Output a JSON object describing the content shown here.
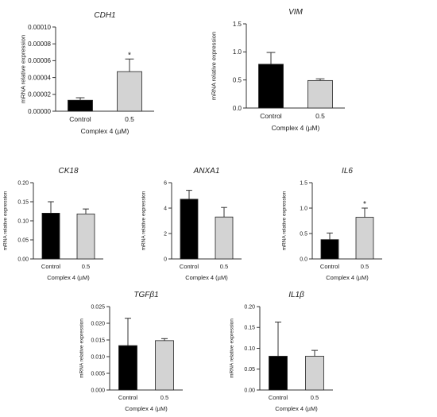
{
  "chart_data": [
    {
      "type": "bar",
      "title": "CDH1",
      "categories": [
        "Control",
        "0.5"
      ],
      "values": [
        1.3e-05,
        4.7e-05
      ],
      "errors": [
        3e-06,
        1.5e-05
      ],
      "significance": [
        "",
        "*"
      ],
      "ylabel": "mRNA relative expression",
      "xlabel": "Complex 4 (µM)",
      "ylim": [
        0,
        0.0001
      ],
      "yticks": [
        "0.00000",
        "0.00002",
        "0.00004",
        "0.00006",
        "0.00008",
        "0.00010"
      ],
      "colors": [
        "#000000",
        "#d3d3d3"
      ]
    },
    {
      "type": "bar",
      "title": "VIM",
      "categories": [
        "Control",
        "0.5"
      ],
      "values": [
        0.78,
        0.49
      ],
      "errors": [
        0.21,
        0.03
      ],
      "significance": [
        "",
        ""
      ],
      "ylabel": "mRNA relative expression",
      "xlabel": "Complex 4 (µM)",
      "ylim": [
        0,
        1.5
      ],
      "yticks": [
        "0.0",
        "0.5",
        "1.0",
        "1.5"
      ],
      "colors": [
        "#000000",
        "#d3d3d3"
      ]
    },
    {
      "type": "bar",
      "title": "CK18",
      "categories": [
        "Control",
        "0.5"
      ],
      "values": [
        0.12,
        0.118
      ],
      "errors": [
        0.03,
        0.013
      ],
      "significance": [
        "",
        ""
      ],
      "ylabel": "mRNA relative expression",
      "xlabel": "Complex 4 (µM)",
      "ylim": [
        0,
        0.2
      ],
      "yticks": [
        "0.00",
        "0.05",
        "0.10",
        "0.15",
        "0.20"
      ],
      "colors": [
        "#000000",
        "#d3d3d3"
      ]
    },
    {
      "type": "bar",
      "title": "ANXA1",
      "categories": [
        "Control",
        "0.5"
      ],
      "values": [
        4.7,
        3.3
      ],
      "errors": [
        0.7,
        0.75
      ],
      "significance": [
        "",
        ""
      ],
      "ylabel": "mRNA relative expression",
      "xlabel": "Complex 4 (µM)",
      "ylim": [
        0,
        6
      ],
      "yticks": [
        "0",
        "2",
        "4",
        "6"
      ],
      "colors": [
        "#000000",
        "#d3d3d3"
      ]
    },
    {
      "type": "bar",
      "title": "IL6",
      "categories": [
        "Control",
        "0.5"
      ],
      "values": [
        0.38,
        0.82
      ],
      "errors": [
        0.13,
        0.18
      ],
      "significance": [
        "",
        "*"
      ],
      "ylabel": "mRNA relative expression",
      "xlabel": "Complex 4 (µM)",
      "ylim": [
        0,
        1.5
      ],
      "yticks": [
        "0.0",
        "0.5",
        "1.0",
        "1.5"
      ],
      "colors": [
        "#000000",
        "#d3d3d3"
      ]
    },
    {
      "type": "bar",
      "title": "TGFβ1",
      "categories": [
        "Control",
        "0.5"
      ],
      "values": [
        0.0133,
        0.0148
      ],
      "errors": [
        0.0082,
        0.0006
      ],
      "significance": [
        "",
        ""
      ],
      "ylabel": "mRNA relative expression",
      "xlabel": "Complex 4 (µM)",
      "ylim": [
        0,
        0.025
      ],
      "yticks": [
        "0.000",
        "0.005",
        "0.010",
        "0.015",
        "0.020",
        "0.025"
      ],
      "colors": [
        "#000000",
        "#d3d3d3"
      ]
    },
    {
      "type": "bar",
      "title": "IL1β",
      "categories": [
        "Control",
        "0.5"
      ],
      "values": [
        0.081,
        0.081
      ],
      "errors": [
        0.082,
        0.014
      ],
      "significance": [
        "",
        ""
      ],
      "ylabel": "mRNA relative expression",
      "xlabel": "Complex 4 (µM)",
      "ylim": [
        0,
        0.2
      ],
      "yticks": [
        "0.00",
        "0.05",
        "0.10",
        "0.15",
        "0.20"
      ],
      "colors": [
        "#000000",
        "#d3d3d3"
      ]
    }
  ]
}
